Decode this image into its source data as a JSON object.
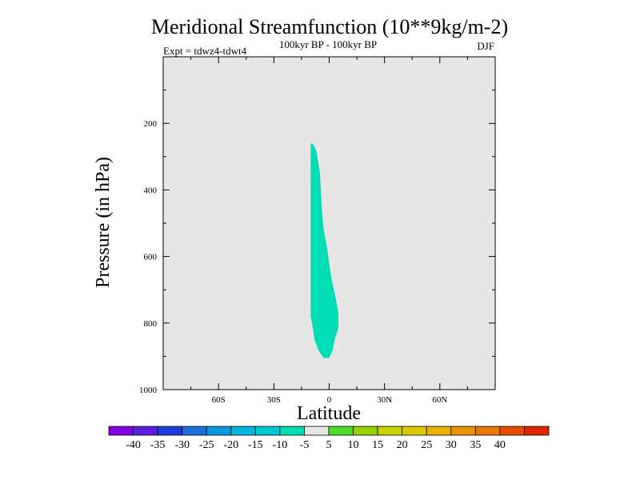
{
  "chart_data": {
    "type": "contour",
    "title": "Meridional Streamfunction (10**9kg/m-2)",
    "subtitle": "100kyr BP - 100kyr BP",
    "experiment_label": "Expt = tdwz4-tdwt4",
    "season_label": "DJF",
    "xlabel": "Latitude",
    "ylabel": "Pressure (in hPa)",
    "xlim": [
      -90,
      90
    ],
    "ylim": [
      1000,
      0
    ],
    "y_reversed": true,
    "x_ticks": [
      {
        "value": -60,
        "label": "60S"
      },
      {
        "value": -30,
        "label": "30S"
      },
      {
        "value": 0,
        "label": "0"
      },
      {
        "value": 30,
        "label": "30N"
      },
      {
        "value": 60,
        "label": "60N"
      }
    ],
    "y_ticks": [
      {
        "value": 200,
        "label": "200"
      },
      {
        "value": 400,
        "label": "400"
      },
      {
        "value": 600,
        "label": "600"
      },
      {
        "value": 800,
        "label": "800"
      },
      {
        "value": 1000,
        "label": "1000"
      }
    ],
    "background_color": "#e6e6e6",
    "filled_regions": [
      {
        "level_range": [
          -10,
          -5
        ],
        "color": "#00dcb4",
        "polygon": [
          {
            "lat": -10,
            "p": 262
          },
          {
            "lat": -9,
            "p": 260
          },
          {
            "lat": -7,
            "p": 282
          },
          {
            "lat": -5,
            "p": 350
          },
          {
            "lat": -4,
            "p": 460
          },
          {
            "lat": -3,
            "p": 520
          },
          {
            "lat": -1,
            "p": 580
          },
          {
            "lat": 1,
            "p": 660
          },
          {
            "lat": 4,
            "p": 738
          },
          {
            "lat": 5,
            "p": 770
          },
          {
            "lat": 5,
            "p": 815
          },
          {
            "lat": 3,
            "p": 848
          },
          {
            "lat": 2,
            "p": 880
          },
          {
            "lat": 0,
            "p": 905
          },
          {
            "lat": -3,
            "p": 905
          },
          {
            "lat": -6,
            "p": 880
          },
          {
            "lat": -8,
            "p": 850
          },
          {
            "lat": -9,
            "p": 810
          },
          {
            "lat": -10,
            "p": 780
          },
          {
            "lat": -10,
            "p": 400
          },
          {
            "lat": -10,
            "p": 270
          }
        ]
      }
    ],
    "colorbar": {
      "colors": [
        "#8200dc",
        "#5a1edc",
        "#1e3cdc",
        "#1e6edc",
        "#0a96dc",
        "#00b4dc",
        "#00c8d2",
        "#00dcb4",
        "#e6e6e6",
        "#50dc28",
        "#96d200",
        "#c8d200",
        "#dcc800",
        "#e6b400",
        "#e69600",
        "#e6780a",
        "#e64b00",
        "#dc2800"
      ],
      "labels": [
        "-40",
        "-35",
        "-30",
        "-25",
        "-20",
        "-15",
        "-10",
        "-5",
        "5",
        "10",
        "15",
        "20",
        "25",
        "30",
        "35",
        "40"
      ]
    }
  }
}
